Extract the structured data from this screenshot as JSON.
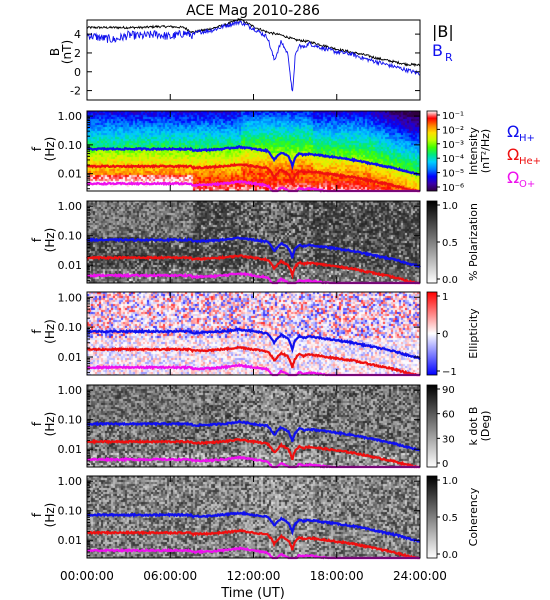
{
  "chart_data": [
    {
      "type": "line",
      "title": "ACE Mag 2010-286",
      "ylabel": "B",
      "yunit": "(nT)",
      "ylim": [
        -3,
        5.5
      ],
      "yticks": [
        "4",
        "2",
        "0",
        "-2"
      ],
      "ytick_values": [
        4,
        2,
        0,
        -2
      ],
      "xlim": [
        0,
        24
      ],
      "series": [
        {
          "name": "|B|",
          "color": "#000000",
          "x": [
            0,
            1,
            2,
            3,
            4,
            5,
            6,
            7,
            7.6,
            8,
            9,
            10,
            11,
            12,
            13,
            14,
            15,
            16,
            17,
            18,
            19,
            20,
            21,
            22,
            23,
            24
          ],
          "values": [
            4.7,
            4.7,
            4.7,
            4.7,
            4.7,
            4.8,
            4.8,
            4.7,
            4.2,
            4.3,
            4.6,
            5.0,
            5.6,
            4.8,
            4.2,
            3.9,
            3.4,
            3.2,
            2.8,
            2.4,
            2.1,
            1.8,
            1.4,
            1.1,
            0.8,
            0.7
          ]
        },
        {
          "name": "B_R",
          "label_main": "B",
          "label_sub": "R",
          "color": "#1010ee",
          "x": [
            0,
            1,
            2,
            3,
            4,
            5,
            6,
            7,
            7.6,
            8,
            9,
            10,
            11,
            12,
            13,
            13.5,
            14,
            14.5,
            14.8,
            15,
            15.3,
            15.6,
            16,
            17,
            18,
            19,
            20,
            21,
            22,
            23,
            24
          ],
          "values": [
            3.9,
            3.6,
            3.4,
            3.9,
            3.8,
            4.0,
            3.7,
            4.1,
            3.9,
            4.2,
            4.4,
            4.9,
            5.3,
            4.6,
            3.7,
            1.2,
            3.2,
            1.8,
            -2.5,
            1.6,
            2.8,
            2.6,
            3.0,
            2.5,
            2.1,
            1.9,
            1.4,
            1.0,
            0.6,
            0.2,
            -0.2
          ]
        }
      ]
    },
    {
      "type": "heatmap",
      "ylabel": "f",
      "yunit": "(Hz)",
      "yticks": [
        "1.00",
        "0.10",
        "0.01"
      ],
      "colorbar_label": "Intensity",
      "colorbar_unit": "(nT²/Hz)",
      "colorbar_ticks": [
        "10⁻¹",
        "10⁻²",
        "10⁻³",
        "10⁻⁴",
        "10⁻⁵",
        "10⁻⁶"
      ],
      "colormap": [
        "#300040",
        "#3a00a8",
        "#0000ff",
        "#0080ff",
        "#00d0ff",
        "#00e880",
        "#40ff00",
        "#c0ff00",
        "#ffe000",
        "#ff8000",
        "#ff0000",
        "#ffffff"
      ],
      "overlay_labels": [
        {
          "symbol": "Ω",
          "sub": "H+",
          "color": "#1010ee"
        },
        {
          "symbol": "Ω",
          "sub": "He+",
          "color": "#ee1010"
        },
        {
          "symbol": "Ω",
          "sub": "O+",
          "color": "#ee10ee"
        }
      ]
    },
    {
      "type": "heatmap",
      "ylabel": "f",
      "yunit": "(Hz)",
      "yticks": [
        "1.00",
        "0.10",
        "0.01"
      ],
      "colorbar_label": "% Polarization",
      "colorbar_ticks": [
        "1.0",
        "0.5",
        "0.0"
      ],
      "colormap": [
        "#ffffff",
        "#000000"
      ]
    },
    {
      "type": "heatmap",
      "ylabel": "f",
      "yunit": "(Hz)",
      "yticks": [
        "1.00",
        "0.10",
        "0.01"
      ],
      "colorbar_label": "Ellipticity",
      "colorbar_ticks": [
        "1",
        "0",
        "−1"
      ],
      "colormap": [
        "#0000ff",
        "#ffffff",
        "#ff0000"
      ]
    },
    {
      "type": "heatmap",
      "ylabel": "f",
      "yunit": "(Hz)",
      "yticks": [
        "1.00",
        "0.10",
        "0.01"
      ],
      "colorbar_label": "k dot B",
      "colorbar_unit": "(Deg)",
      "colorbar_ticks": [
        "90",
        "60",
        "30",
        "0"
      ],
      "colormap": [
        "#ffffff",
        "#000000"
      ]
    },
    {
      "type": "heatmap",
      "ylabel": "f",
      "yunit": "(Hz)",
      "yticks": [
        "1.00",
        "0.10",
        "0.01"
      ],
      "colorbar_label": "Coherency",
      "colorbar_ticks": [
        "1.0",
        "0.5",
        "0.0"
      ],
      "colormap": [
        "#ffffff",
        "#000000"
      ]
    }
  ],
  "gyrofrequencies": {
    "note_units": "Hz",
    "H+": {
      "color": "#1010ee",
      "x": [
        0,
        2,
        4,
        6,
        7.5,
        7.6,
        9,
        10,
        11,
        12,
        13,
        13.5,
        14,
        14.5,
        14.8,
        15,
        15.3,
        15.6,
        16,
        17,
        18,
        19,
        20,
        21,
        22,
        23,
        24
      ],
      "values": [
        0.072,
        0.072,
        0.072,
        0.072,
        0.072,
        0.064,
        0.068,
        0.074,
        0.085,
        0.072,
        0.062,
        0.03,
        0.055,
        0.04,
        0.018,
        0.035,
        0.05,
        0.044,
        0.048,
        0.042,
        0.036,
        0.031,
        0.025,
        0.02,
        0.016,
        0.012,
        0.009
      ]
    },
    "He+": {
      "color": "#ee1010",
      "x": [
        0,
        2,
        4,
        6,
        7.5,
        7.6,
        9,
        10,
        11,
        12,
        13,
        13.5,
        14,
        14.5,
        14.8,
        15,
        15.3,
        15.6,
        16,
        17,
        18,
        19,
        20,
        21,
        22,
        23,
        24
      ],
      "values": [
        0.018,
        0.018,
        0.018,
        0.018,
        0.018,
        0.016,
        0.017,
        0.0185,
        0.021,
        0.018,
        0.0155,
        0.0075,
        0.0138,
        0.01,
        0.0045,
        0.0088,
        0.0125,
        0.011,
        0.012,
        0.0105,
        0.009,
        0.0078,
        0.0063,
        0.005,
        0.004,
        0.003,
        0.0023
      ]
    },
    "O+": {
      "color": "#ee10ee",
      "x": [
        0,
        2,
        4,
        6,
        7.5,
        7.6,
        9,
        10,
        11,
        12,
        13,
        13.5,
        14,
        14.5,
        14.8,
        15,
        15.3,
        15.6,
        16,
        17,
        18,
        19,
        20,
        21,
        22,
        23,
        24
      ],
      "values": [
        0.0045,
        0.0045,
        0.0045,
        0.0045,
        0.0045,
        0.004,
        0.0042,
        0.0046,
        0.0053,
        0.0045,
        0.0039,
        0.0019,
        0.0034,
        0.0025,
        0.0011,
        0.0022,
        0.0031,
        0.0028,
        0.003,
        0.0026,
        0.0023,
        0.002,
        0.0016,
        0.0013,
        0.001,
        0.0008,
        0.0006
      ]
    }
  },
  "x_axis": {
    "label": "Time (UT)",
    "ticks": [
      "00:00:00",
      "06:00:00",
      "12:00:00",
      "18:00:00",
      "24:00:00"
    ],
    "tick_values": [
      0,
      6,
      12,
      18,
      24
    ]
  }
}
